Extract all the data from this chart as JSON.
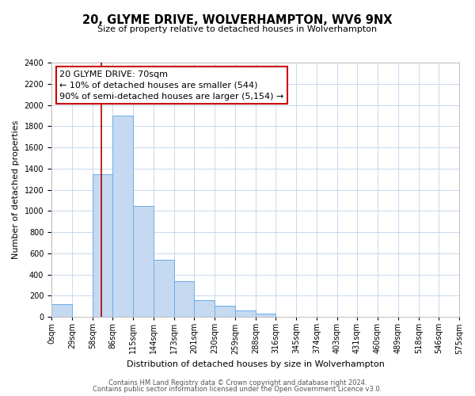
{
  "title": "20, GLYME DRIVE, WOLVERHAMPTON, WV6 9NX",
  "subtitle": "Size of property relative to detached houses in Wolverhampton",
  "xlabel": "Distribution of detached houses by size in Wolverhampton",
  "ylabel": "Number of detached properties",
  "footer_line1": "Contains HM Land Registry data © Crown copyright and database right 2024.",
  "footer_line2": "Contains public sector information licensed under the Open Government Licence v3.0.",
  "bin_labels": [
    "0sqm",
    "29sqm",
    "58sqm",
    "86sqm",
    "115sqm",
    "144sqm",
    "173sqm",
    "201sqm",
    "230sqm",
    "259sqm",
    "288sqm",
    "316sqm",
    "345sqm",
    "374sqm",
    "403sqm",
    "431sqm",
    "460sqm",
    "489sqm",
    "518sqm",
    "546sqm",
    "575sqm"
  ],
  "bin_edges": [
    0,
    29,
    58,
    86,
    115,
    144,
    173,
    201,
    230,
    259,
    288,
    316,
    345,
    374,
    403,
    431,
    460,
    489,
    518,
    546,
    575
  ],
  "bar_heights": [
    120,
    0,
    1350,
    1900,
    1050,
    540,
    340,
    160,
    105,
    60,
    30,
    0,
    0,
    0,
    0,
    0,
    0,
    0,
    0,
    0
  ],
  "bar_color": "#c5d9f0",
  "bar_edge_color": "#6aaee8",
  "ylim": [
    0,
    2400
  ],
  "yticks": [
    0,
    200,
    400,
    600,
    800,
    1000,
    1200,
    1400,
    1600,
    1800,
    2000,
    2200,
    2400
  ],
  "vline_x": 70,
  "vline_color": "#aa0000",
  "annotation_title": "20 GLYME DRIVE: 70sqm",
  "annotation_line1": "← 10% of detached houses are smaller (544)",
  "annotation_line2": "90% of semi-detached houses are larger (5,154) →",
  "annotation_box_facecolor": "#ffffff",
  "annotation_box_edgecolor": "#cc0000",
  "background_color": "#ffffff",
  "grid_color": "#c8d8ec",
  "title_fontsize": 10.5,
  "subtitle_fontsize": 8,
  "ylabel_fontsize": 8,
  "xlabel_fontsize": 8,
  "tick_fontsize": 7,
  "footer_fontsize": 6,
  "annotation_fontsize": 8
}
